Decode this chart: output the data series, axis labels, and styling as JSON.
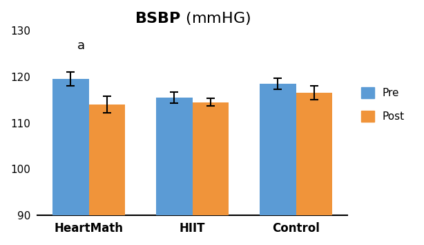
{
  "title": "BSBP (mmHG)",
  "annotation": "a",
  "categories": [
    "HeartMath",
    "HIIT",
    "Control"
  ],
  "pre_values": [
    119.5,
    115.5,
    118.5
  ],
  "post_values": [
    114.0,
    114.5,
    116.5
  ],
  "pre_errors": [
    1.5,
    1.2,
    1.2
  ],
  "post_errors": [
    1.8,
    0.8,
    1.5
  ],
  "pre_color": "#5B9BD5",
  "post_color": "#F0943A",
  "ylim": [
    90,
    130
  ],
  "yticks": [
    90,
    100,
    110,
    120,
    130
  ],
  "bar_width": 0.35,
  "group_positions": [
    1,
    2,
    3
  ],
  "legend_labels": [
    "Pre",
    "Post"
  ],
  "background_color": "#ffffff",
  "error_capsize": 4,
  "error_linewidth": 1.5
}
